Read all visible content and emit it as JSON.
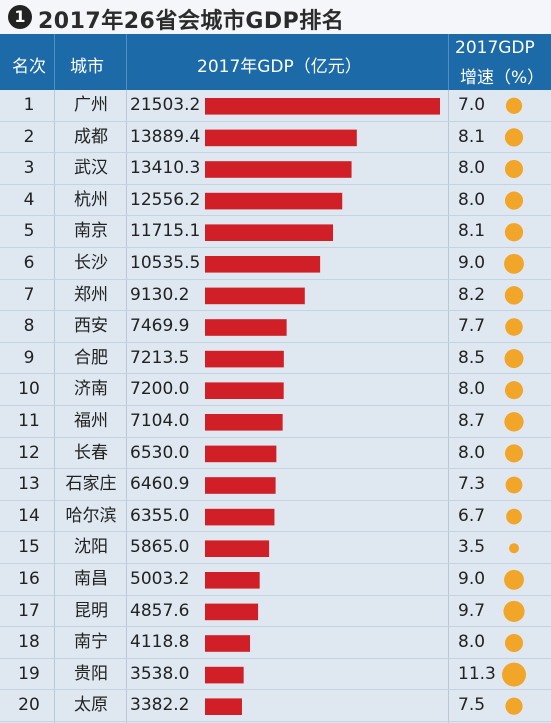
{
  "title": {
    "badge": "1",
    "text": "2017年26省会城市GDP排名"
  },
  "header": {
    "rank": "名次",
    "city": "城市",
    "gdp": "2017年GDP（亿元）",
    "growth_line1": "2017GDP",
    "growth_line2": "增速（%）"
  },
  "colors": {
    "header_bg": "#1c6aa7",
    "bar": "#d01f26",
    "dot": "#f1a62a",
    "row_bg": "#dfe8f1"
  },
  "chart_data": {
    "type": "table",
    "columns": [
      "名次",
      "城市",
      "2017年GDP（亿元）",
      "2017GDP增速（%）"
    ],
    "rows": [
      {
        "rank": "1",
        "city": "广州",
        "gdp": "21503.2",
        "growth": "7.0"
      },
      {
        "rank": "2",
        "city": "成都",
        "gdp": "13889.4",
        "growth": "8.1"
      },
      {
        "rank": "3",
        "city": "武汉",
        "gdp": "13410.3",
        "growth": "8.0"
      },
      {
        "rank": "4",
        "city": "杭州",
        "gdp": "12556.2",
        "growth": "8.0"
      },
      {
        "rank": "5",
        "city": "南京",
        "gdp": "11715.1",
        "growth": "8.1"
      },
      {
        "rank": "6",
        "city": "长沙",
        "gdp": "10535.5",
        "growth": "9.0"
      },
      {
        "rank": "7",
        "city": "郑州",
        "gdp": "9130.2",
        "growth": "8.2"
      },
      {
        "rank": "8",
        "city": "西安",
        "gdp": "7469.9",
        "growth": "7.7"
      },
      {
        "rank": "9",
        "city": "合肥",
        "gdp": "7213.5",
        "growth": "8.5"
      },
      {
        "rank": "10",
        "city": "济南",
        "gdp": "7200.0",
        "growth": "8.0"
      },
      {
        "rank": "11",
        "city": "福州",
        "gdp": "7104.0",
        "growth": "8.7"
      },
      {
        "rank": "12",
        "city": "长春",
        "gdp": "6530.0",
        "growth": "8.0"
      },
      {
        "rank": "13",
        "city": "石家庄",
        "gdp": "6460.9",
        "growth": "7.3"
      },
      {
        "rank": "14",
        "city": "哈尔滨",
        "gdp": "6355.0",
        "growth": "6.7"
      },
      {
        "rank": "15",
        "city": "沈阳",
        "gdp": "5865.0",
        "growth": "3.5"
      },
      {
        "rank": "16",
        "city": "南昌",
        "gdp": "5003.2",
        "growth": "9.0"
      },
      {
        "rank": "17",
        "city": "昆明",
        "gdp": "4857.6",
        "growth": "9.7"
      },
      {
        "rank": "18",
        "city": "南宁",
        "gdp": "4118.8",
        "growth": "8.0"
      },
      {
        "rank": "19",
        "city": "贵阳",
        "gdp": "3538.0",
        "growth": "11.3"
      },
      {
        "rank": "20",
        "city": "太原",
        "gdp": "3382.2",
        "growth": "7.5"
      }
    ]
  }
}
